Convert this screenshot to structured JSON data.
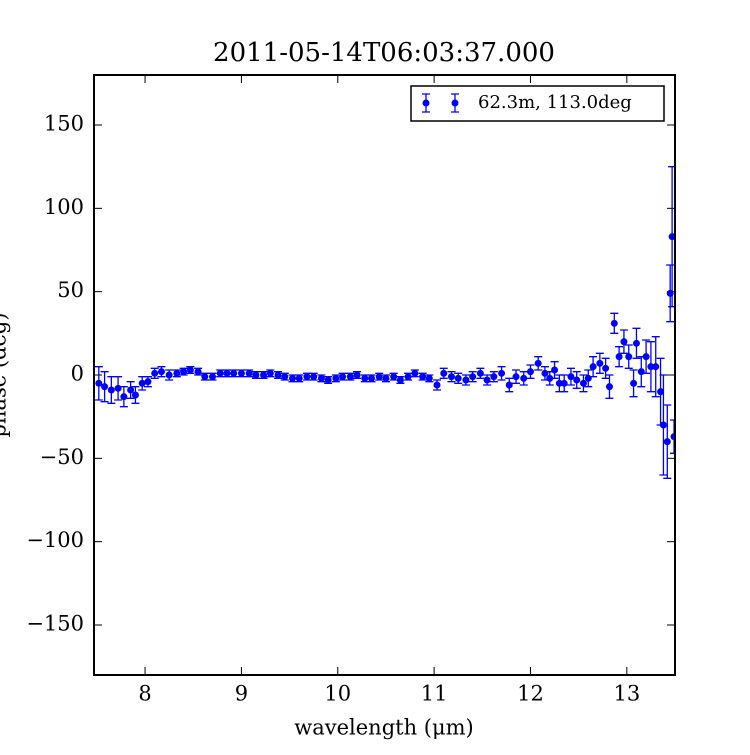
{
  "chart_data": {
    "type": "scatter",
    "title": "2011-05-14T06:03:37.000",
    "xlabel": "wavelength (μm)",
    "ylabel": "phase (deg)",
    "x": [
      7.52,
      7.58,
      7.65,
      7.72,
      7.78,
      7.85,
      7.9,
      7.97,
      8.03,
      8.1,
      8.17,
      8.25,
      8.33,
      8.4,
      8.47,
      8.55,
      8.62,
      8.7,
      8.78,
      8.85,
      8.92,
      9.0,
      9.08,
      9.15,
      9.23,
      9.3,
      9.38,
      9.45,
      9.53,
      9.6,
      9.68,
      9.75,
      9.83,
      9.9,
      9.98,
      10.05,
      10.13,
      10.2,
      10.28,
      10.35,
      10.43,
      10.5,
      10.58,
      10.65,
      10.73,
      10.8,
      10.88,
      10.95,
      11.03,
      11.1,
      11.18,
      11.25,
      11.33,
      11.4,
      11.48,
      11.55,
      11.62,
      11.7,
      11.78,
      11.85,
      11.93,
      12.0,
      12.08,
      12.15,
      12.2,
      12.25,
      12.3,
      12.35,
      12.42,
      12.48,
      12.55,
      12.6,
      12.65,
      12.72,
      12.78,
      12.82,
      12.87,
      12.92,
      12.97,
      13.02,
      13.07,
      13.1,
      13.15,
      13.2,
      13.25,
      13.3,
      13.35,
      13.38,
      13.42,
      13.45,
      13.47,
      13.49
    ],
    "series": [
      {
        "name": "62.3m, 113.0deg",
        "color": "#0000ff",
        "values": [
          -5,
          -7,
          -9,
          -8,
          -13,
          -9,
          -12,
          -5,
          -4,
          1,
          2,
          0,
          1,
          2,
          3,
          2,
          -1,
          -1,
          1,
          1,
          1,
          1,
          1,
          0,
          0,
          1,
          0,
          -1,
          -2,
          -2,
          -1,
          -1,
          -2,
          -3,
          -2,
          -1,
          -1,
          0,
          -2,
          -2,
          -1,
          -2,
          -1,
          -3,
          -1,
          1,
          -1,
          -2,
          -6,
          1,
          -1,
          -2,
          -3,
          -1,
          1,
          -3,
          -1,
          1,
          -6,
          -1,
          -2,
          2,
          7,
          1,
          -2,
          3,
          -5,
          -5,
          -1,
          -3,
          -5,
          -2,
          5,
          7,
          4,
          -7,
          31,
          11,
          20,
          11,
          -5,
          19,
          2,
          11,
          5,
          5,
          -10,
          -30,
          -40,
          49,
          83,
          -37
        ],
        "errors": [
          10,
          9,
          8,
          7,
          6,
          5,
          5,
          4,
          3,
          3,
          3,
          3,
          2,
          2,
          2,
          2,
          2,
          2,
          2,
          2,
          2,
          2,
          2,
          2,
          2,
          2,
          2,
          2,
          2,
          2,
          2,
          2,
          2,
          2,
          2,
          2,
          2,
          2,
          2,
          2,
          2,
          2,
          2,
          2,
          2,
          2,
          2,
          2,
          3,
          3,
          3,
          3,
          3,
          3,
          3,
          3,
          3,
          4,
          4,
          4,
          4,
          4,
          4,
          4,
          4,
          5,
          5,
          5,
          5,
          5,
          5,
          5,
          6,
          6,
          6,
          7,
          6,
          6,
          7,
          7,
          8,
          9,
          9,
          10,
          15,
          18,
          20,
          30,
          22,
          17,
          42,
          10
        ]
      }
    ],
    "xlim": [
      7.47,
      13.5
    ],
    "ylim": [
      -180,
      180
    ],
    "xticks": [
      8,
      9,
      10,
      11,
      12,
      13
    ],
    "yticks": [
      {
        "value": -150,
        "label": "−150"
      },
      {
        "value": -100,
        "label": "−100"
      },
      {
        "value": -50,
        "label": "−50"
      },
      0,
      50,
      100,
      150
    ],
    "legend": "upper right"
  }
}
